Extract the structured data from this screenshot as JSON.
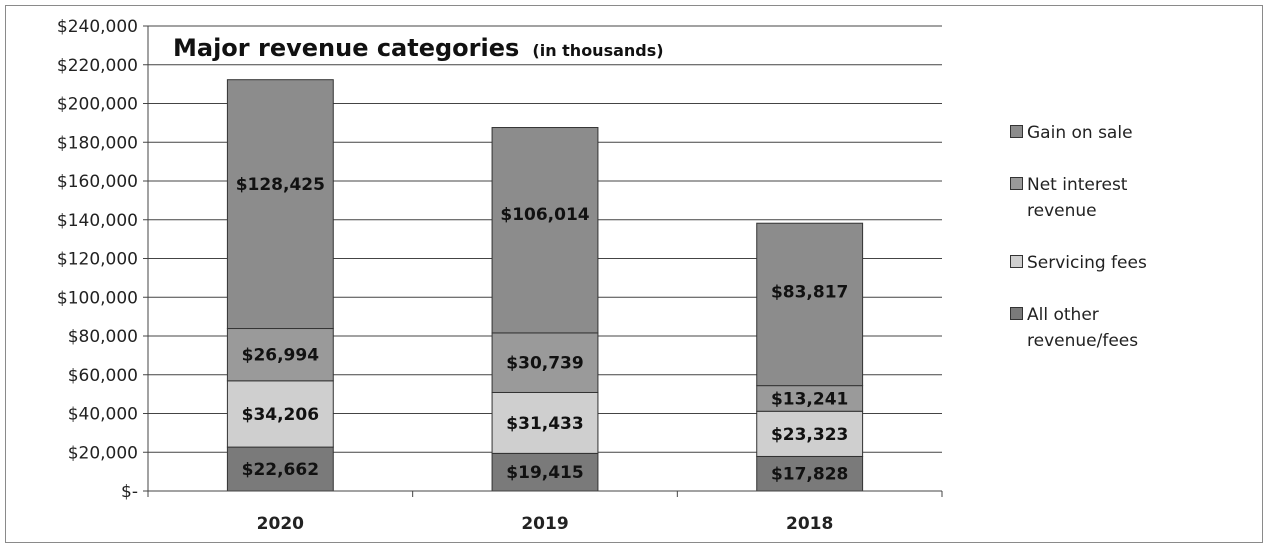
{
  "chart_data": {
    "type": "bar",
    "stacked": true,
    "title": "Major revenue categories",
    "subtitle": "(in thousands)",
    "categories": [
      "2020",
      "2019",
      "2018"
    ],
    "ylim": [
      0,
      240000
    ],
    "yticks": [
      0,
      20000,
      40000,
      60000,
      80000,
      100000,
      120000,
      140000,
      160000,
      180000,
      200000,
      220000,
      240000
    ],
    "ytick_labels": [
      "$-",
      "$20,000",
      "$40,000",
      "$60,000",
      "$80,000",
      "$100,000",
      "$120,000",
      "$140,000",
      "$160,000",
      "$180,000",
      "$200,000",
      "$220,000",
      "$240,000"
    ],
    "grid": true,
    "legend_position": "right",
    "series": [
      {
        "name": "All other revenue/fees",
        "values": [
          22662,
          19415,
          17828
        ],
        "labels": [
          "$22,662",
          "$19,415",
          "$17,828"
        ],
        "color": "#7a7a7a"
      },
      {
        "name": "Servicing fees",
        "values": [
          34206,
          31433,
          23323
        ],
        "labels": [
          "$34,206",
          "$31,433",
          "$23,323"
        ],
        "color": "#cfcfcf"
      },
      {
        "name": "Net interest revenue",
        "values": [
          26994,
          30739,
          13241
        ],
        "labels": [
          "$26,994",
          "$30,739",
          "$13,241"
        ],
        "color": "#9a9a9a"
      },
      {
        "name": "Gain on sale",
        "values": [
          128425,
          106014,
          83817
        ],
        "labels": [
          "$128,425",
          "$106,014",
          "$83,817"
        ],
        "color": "#8c8c8c"
      }
    ],
    "legend_order": [
      "Gain on sale",
      "Net interest\nrevenue",
      "Servicing fees",
      "All other\nrevenue/fees"
    ]
  }
}
